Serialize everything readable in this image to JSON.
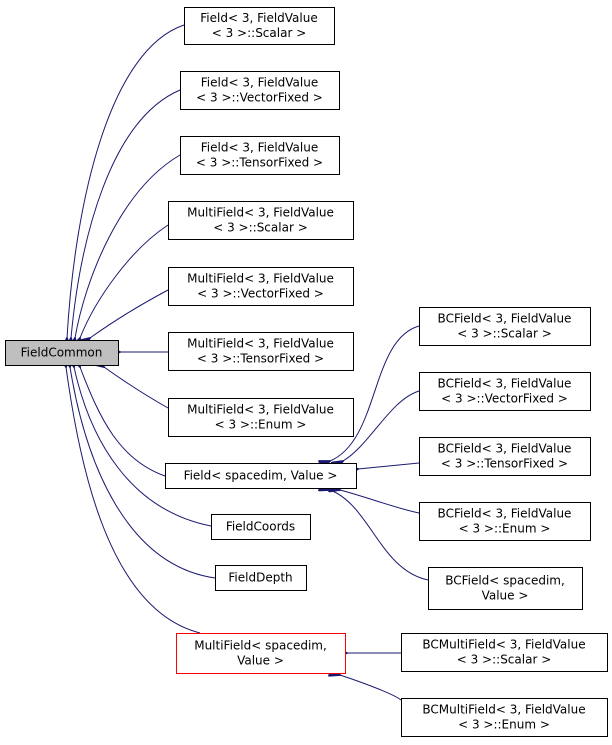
{
  "colors": {
    "edge": "#191970",
    "root_fill": "#bfbfbf",
    "highlight_border": "#ff0000"
  },
  "nodes": {
    "fieldcommon": {
      "lines": [
        "FieldCommon"
      ]
    },
    "field_scalar": {
      "lines": [
        "Field< 3, FieldValue",
        "< 3 >::Scalar >"
      ]
    },
    "field_vectorfixed": {
      "lines": [
        "Field< 3, FieldValue",
        "< 3 >::VectorFixed >"
      ]
    },
    "field_tensorfixed": {
      "lines": [
        "Field< 3, FieldValue",
        "< 3 >::TensorFixed >"
      ]
    },
    "multifield_scalar": {
      "lines": [
        "MultiField< 3, FieldValue",
        "< 3 >::Scalar >"
      ]
    },
    "multifield_vectorfixed": {
      "lines": [
        "MultiField< 3, FieldValue",
        "< 3 >::VectorFixed >"
      ]
    },
    "multifield_tensorfixed": {
      "lines": [
        "MultiField< 3, FieldValue",
        "< 3 >::TensorFixed >"
      ]
    },
    "multifield_enum": {
      "lines": [
        "MultiField< 3, FieldValue",
        "< 3 >::Enum >"
      ]
    },
    "field_spacedim": {
      "lines": [
        "Field< spacedim, Value >"
      ]
    },
    "fieldcoords": {
      "lines": [
        "FieldCoords"
      ]
    },
    "fielddepth": {
      "lines": [
        "FieldDepth"
      ]
    },
    "multifield_spacedim": {
      "lines": [
        "MultiField< spacedim,",
        "Value >"
      ]
    },
    "bcfield_scalar": {
      "lines": [
        "BCField< 3, FieldValue",
        "< 3 >::Scalar >"
      ]
    },
    "bcfield_vectorfixed": {
      "lines": [
        "BCField< 3, FieldValue",
        "< 3 >::VectorFixed >"
      ]
    },
    "bcfield_tensorfixed": {
      "lines": [
        "BCField< 3, FieldValue",
        "< 3 >::TensorFixed >"
      ]
    },
    "bcfield_enum": {
      "lines": [
        "BCField< 3, FieldValue",
        "< 3 >::Enum >"
      ]
    },
    "bcfield_spacedim": {
      "lines": [
        "BCField< spacedim,",
        "Value >"
      ]
    },
    "bcmultifield_scalar": {
      "lines": [
        "BCMultiField< 3, FieldValue",
        "< 3 >::Scalar >"
      ]
    },
    "bcmultifield_enum": {
      "lines": [
        "BCMultiField< 3, FieldValue",
        "< 3 >::Enum >"
      ]
    }
  },
  "edges": [
    {
      "from": "field_scalar",
      "to": "fieldcommon"
    },
    {
      "from": "field_vectorfixed",
      "to": "fieldcommon"
    },
    {
      "from": "field_tensorfixed",
      "to": "fieldcommon"
    },
    {
      "from": "multifield_scalar",
      "to": "fieldcommon"
    },
    {
      "from": "multifield_vectorfixed",
      "to": "fieldcommon"
    },
    {
      "from": "multifield_tensorfixed",
      "to": "fieldcommon"
    },
    {
      "from": "multifield_enum",
      "to": "fieldcommon"
    },
    {
      "from": "field_spacedim",
      "to": "fieldcommon"
    },
    {
      "from": "fieldcoords",
      "to": "fieldcommon"
    },
    {
      "from": "fielddepth",
      "to": "fieldcommon"
    },
    {
      "from": "multifield_spacedim",
      "to": "fieldcommon"
    },
    {
      "from": "bcfield_scalar",
      "to": "field_spacedim"
    },
    {
      "from": "bcfield_vectorfixed",
      "to": "field_spacedim"
    },
    {
      "from": "bcfield_tensorfixed",
      "to": "field_spacedim"
    },
    {
      "from": "bcfield_enum",
      "to": "field_spacedim"
    },
    {
      "from": "bcfield_spacedim",
      "to": "field_spacedim"
    },
    {
      "from": "bcmultifield_scalar",
      "to": "multifield_spacedim"
    },
    {
      "from": "bcmultifield_enum",
      "to": "multifield_spacedim"
    }
  ]
}
